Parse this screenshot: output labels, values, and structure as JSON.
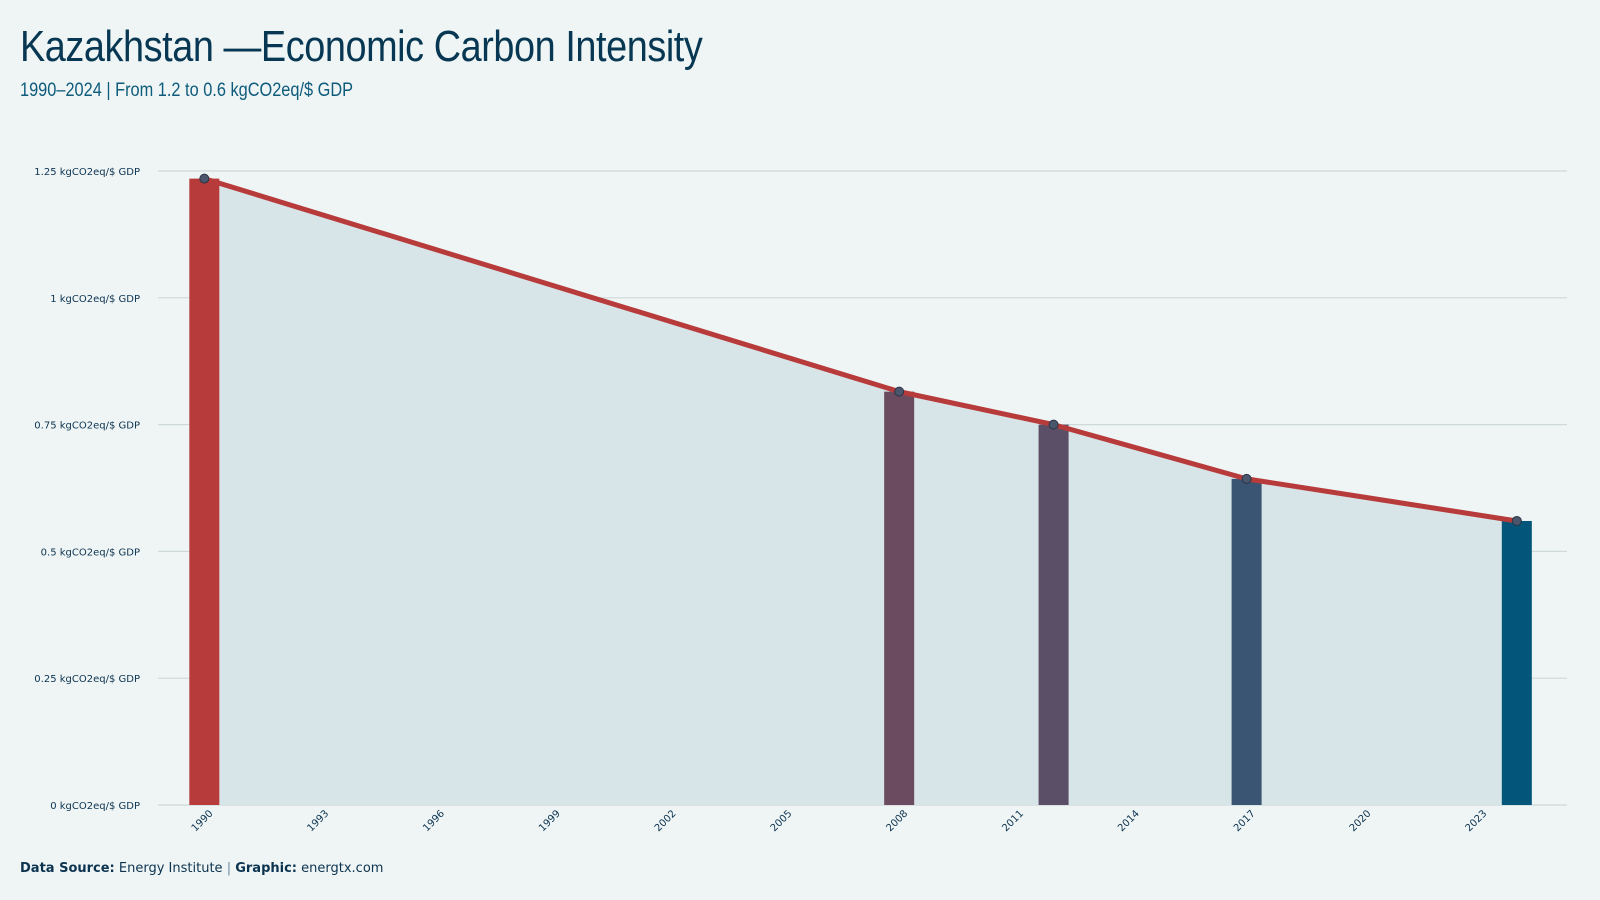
{
  "title": "Kazakhstan —Economic Carbon Intensity",
  "subtitle": "1990–2024 | From 1.2 to 0.6 kgCO2eq/$ GDP",
  "footer": {
    "source_label": "Data Source:",
    "source_value": "Energy Institute",
    "separator": "|",
    "graphic_label": "Graphic:",
    "graphic_value": "energtx.com"
  },
  "colors": {
    "background": "#eff5f5",
    "area": "#d7e4e8",
    "line": "#b83b3b",
    "grid": "#cfd8da",
    "point": "#4a566b"
  },
  "chart_data": {
    "type": "line",
    "x_range": [
      1988.8,
      2025.3
    ],
    "ylim": [
      0,
      1.25
    ],
    "y_ticks": [
      {
        "value": 0,
        "label": "0 kgCO2eq/$ GDP"
      },
      {
        "value": 0.25,
        "label": "0.25 kgCO2eq/$ GDP"
      },
      {
        "value": 0.5,
        "label": "0.5 kgCO2eq/$ GDP"
      },
      {
        "value": 0.75,
        "label": "0.75 kgCO2eq/$ GDP"
      },
      {
        "value": 1,
        "label": "1 kgCO2eq/$ GDP"
      },
      {
        "value": 1.25,
        "label": "1.25 kgCO2eq/$ GDP"
      }
    ],
    "x_ticks": [
      "1990",
      "1993",
      "1996",
      "1999",
      "2002",
      "2005",
      "2008",
      "2011",
      "2014",
      "2017",
      "2020",
      "2023"
    ],
    "grid": true,
    "area_fill": true,
    "series": [
      {
        "points": [
          {
            "x": 1990,
            "y": 1.235
          },
          {
            "x": 2008,
            "y": 0.815
          },
          {
            "x": 2012,
            "y": 0.75
          },
          {
            "x": 2017,
            "y": 0.643
          },
          {
            "x": 2024,
            "y": 0.56
          }
        ]
      }
    ],
    "highlight_bars": [
      {
        "x": 1990,
        "value": 1.235,
        "color": "#b83b3b"
      },
      {
        "x": 2008,
        "value": 0.815,
        "color": "#6a4b5f"
      },
      {
        "x": 2012,
        "value": 0.75,
        "color": "#5a4f66"
      },
      {
        "x": 2017,
        "value": 0.643,
        "color": "#3a5473"
      },
      {
        "x": 2024,
        "value": 0.56,
        "color": "#03567a"
      }
    ]
  }
}
